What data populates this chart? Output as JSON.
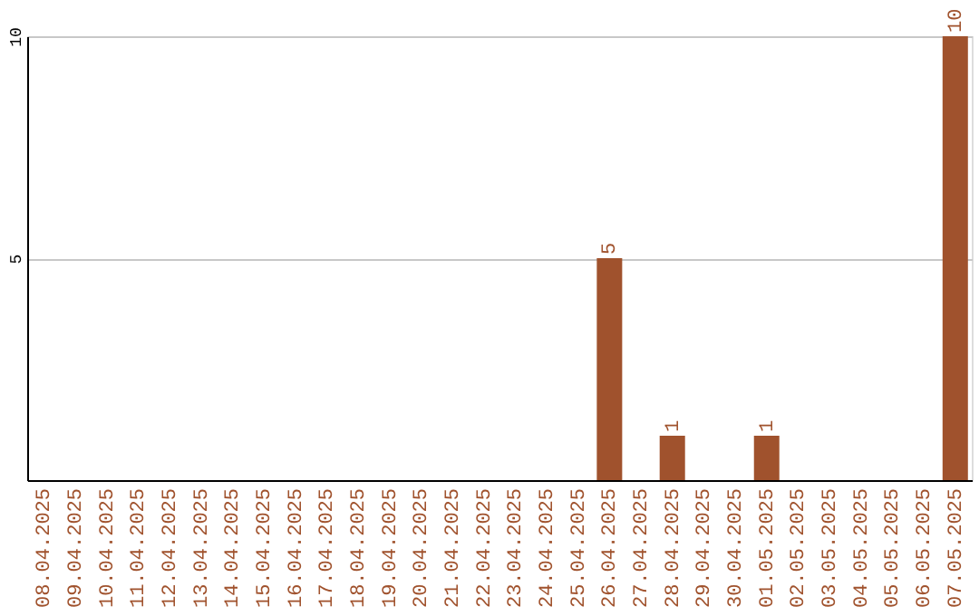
{
  "chart_data": {
    "type": "bar",
    "categories": [
      "08.04.2025",
      "09.04.2025",
      "10.04.2025",
      "11.04.2025",
      "12.04.2025",
      "13.04.2025",
      "14.04.2025",
      "15.04.2025",
      "16.04.2025",
      "17.04.2025",
      "18.04.2025",
      "19.04.2025",
      "20.04.2025",
      "21.04.2025",
      "22.04.2025",
      "23.04.2025",
      "24.04.2025",
      "25.04.2025",
      "26.04.2025",
      "27.04.2025",
      "28.04.2025",
      "29.04.2025",
      "30.04.2025",
      "01.05.2025",
      "02.05.2025",
      "03.05.2025",
      "04.05.2025",
      "05.05.2025",
      "06.05.2025",
      "07.05.2025"
    ],
    "values": [
      0,
      0,
      0,
      0,
      0,
      0,
      0,
      0,
      0,
      0,
      0,
      0,
      0,
      0,
      0,
      0,
      0,
      0,
      5,
      0,
      1,
      0,
      0,
      1,
      0,
      0,
      0,
      0,
      0,
      10
    ],
    "value_labels": [
      null,
      null,
      null,
      null,
      null,
      null,
      null,
      null,
      null,
      null,
      null,
      null,
      null,
      null,
      null,
      null,
      null,
      null,
      "5",
      null,
      "1",
      null,
      null,
      "1",
      null,
      null,
      null,
      null,
      null,
      "10"
    ],
    "color": "#a0522d",
    "ylim": [
      0,
      10
    ],
    "yticks": [
      5,
      10
    ],
    "grid": "y"
  }
}
